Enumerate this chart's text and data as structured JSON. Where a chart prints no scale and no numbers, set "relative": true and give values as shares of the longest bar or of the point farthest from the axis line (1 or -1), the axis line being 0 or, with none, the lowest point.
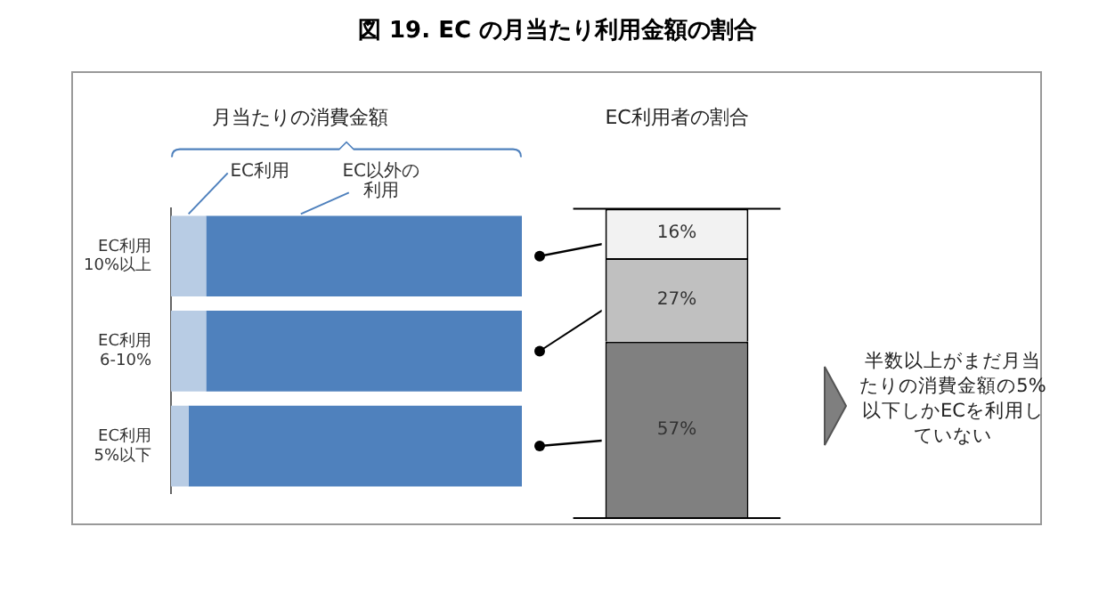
{
  "chart_data": [
    {
      "type": "bar",
      "title": "図 19. EC の月当たり利用金額の割合",
      "subtitle": "月当たりの消費金額",
      "orientation": "horizontal",
      "stacked": true,
      "relative": true,
      "categories": [
        "EC利用\n10%以上",
        "EC利用\n6-10%",
        "EC利用\n5%以下"
      ],
      "series": [
        {
          "name": "EC利用",
          "color": "#b8cce4",
          "values": [
            0.1,
            0.1,
            0.05
          ]
        },
        {
          "name": "EC以外の利用",
          "color": "#4f81bd",
          "values": [
            0.9,
            0.9,
            0.95
          ]
        }
      ]
    },
    {
      "type": "bar",
      "title": "EC利用者の割合",
      "stacked": true,
      "tick_labels": false,
      "categories": [
        null
      ],
      "series": [
        {
          "color": "#808080",
          "values": [
            57
          ],
          "value_labels": [
            "57%"
          ]
        },
        {
          "color": "#c0c0c0",
          "values": [
            27
          ],
          "value_labels": [
            "27%"
          ]
        },
        {
          "color": "#f2f2f2",
          "values": [
            16
          ],
          "value_labels": [
            "16%"
          ]
        }
      ],
      "annotations": [
        "半数以上がまだ月当たりの消費金額の5%以下しかECを利用していない"
      ]
    }
  ]
}
